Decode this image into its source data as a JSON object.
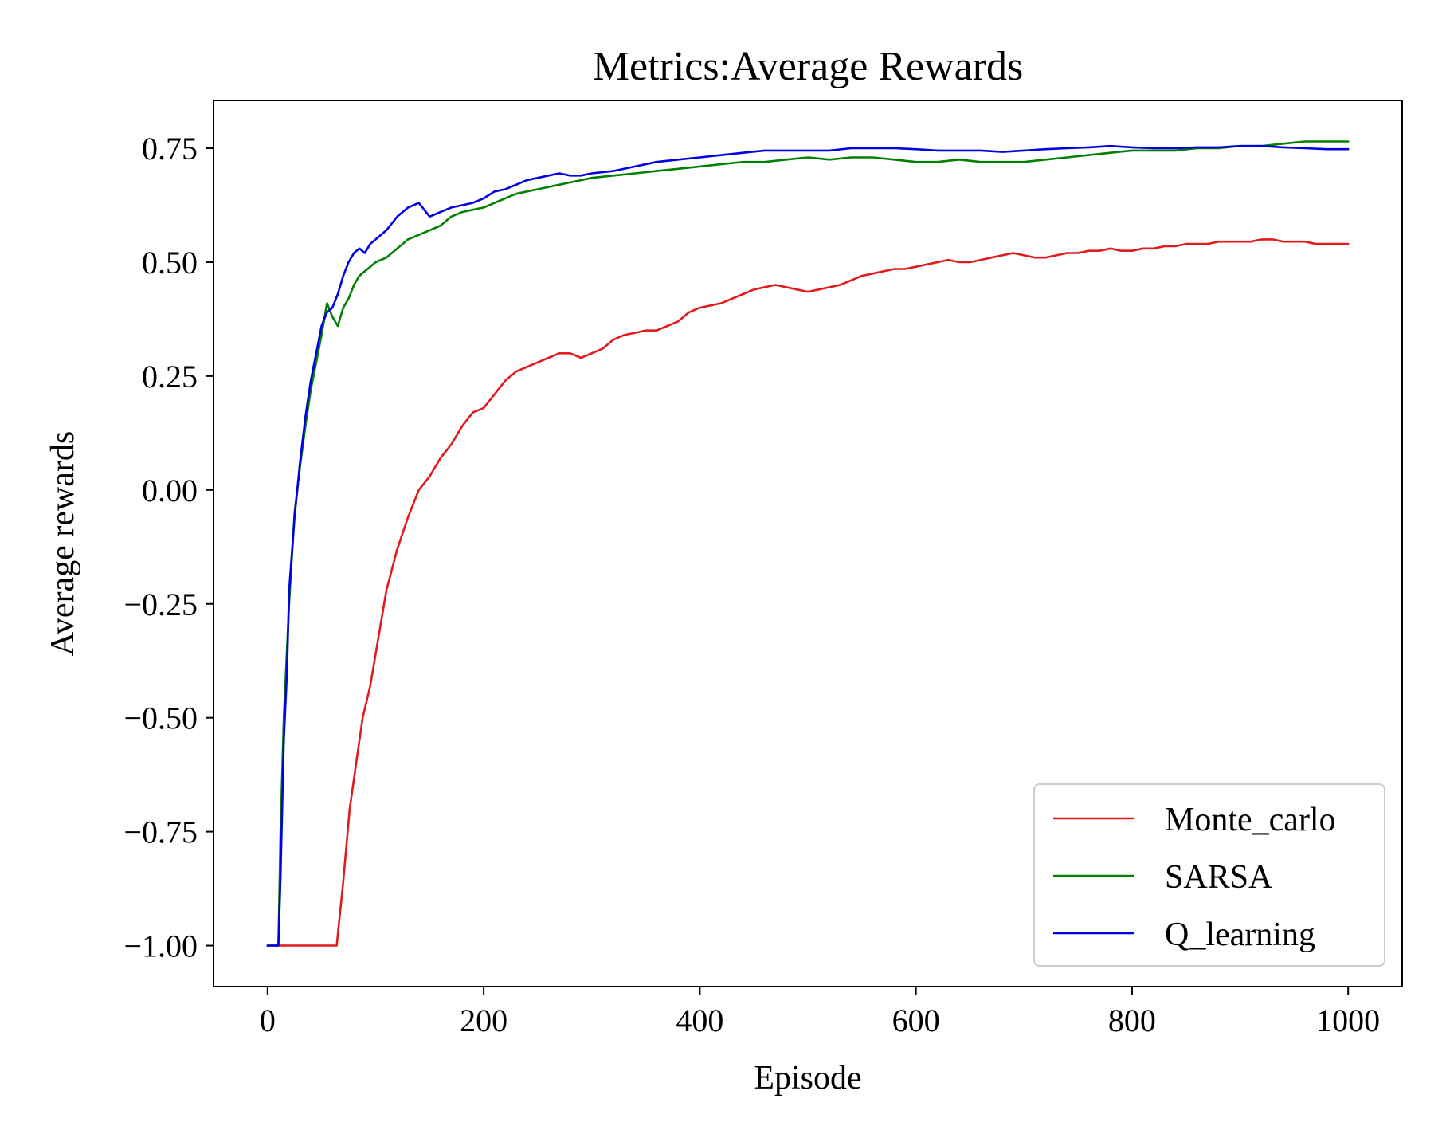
{
  "chart_data": {
    "type": "line",
    "title": "Metrics:Average Rewards",
    "xlabel": "Episode",
    "ylabel": "Average rewards",
    "xlim": [
      -50,
      1050
    ],
    "ylim": [
      -1.09,
      0.855
    ],
    "xticks": [
      0,
      200,
      400,
      600,
      800,
      1000
    ],
    "xtick_labels": [
      "0",
      "200",
      "400",
      "600",
      "800",
      "1000"
    ],
    "yticks": [
      -1.0,
      -0.75,
      -0.5,
      -0.25,
      0.0,
      0.25,
      0.5,
      0.75
    ],
    "ytick_labels": [
      "−1.00",
      "−0.75",
      "−0.50",
      "−0.25",
      "0.00",
      "0.25",
      "0.50",
      "0.75"
    ],
    "grid": false,
    "legend_position": "lower right",
    "series": [
      {
        "name": "Monte_carlo",
        "color": "#e31a1c",
        "x": [
          0,
          20,
          40,
          60,
          64,
          70,
          76,
          82,
          88,
          95,
          100,
          110,
          120,
          130,
          140,
          150,
          160,
          170,
          180,
          190,
          200,
          210,
          220,
          230,
          240,
          250,
          260,
          270,
          280,
          290,
          300,
          310,
          320,
          330,
          340,
          350,
          360,
          370,
          380,
          390,
          400,
          410,
          420,
          430,
          440,
          450,
          460,
          470,
          480,
          490,
          500,
          510,
          520,
          530,
          540,
          550,
          560,
          570,
          580,
          590,
          600,
          610,
          620,
          630,
          640,
          650,
          660,
          670,
          680,
          690,
          700,
          710,
          720,
          730,
          740,
          750,
          760,
          770,
          780,
          790,
          800,
          810,
          820,
          830,
          840,
          850,
          860,
          870,
          880,
          890,
          900,
          910,
          920,
          930,
          940,
          950,
          960,
          970,
          980,
          990,
          1000
        ],
        "y": [
          -1.0,
          -1.0,
          -1.0,
          -1.0,
          -1.0,
          -0.86,
          -0.7,
          -0.6,
          -0.5,
          -0.43,
          -0.36,
          -0.22,
          -0.13,
          -0.06,
          0.0,
          0.03,
          0.07,
          0.1,
          0.14,
          0.17,
          0.18,
          0.21,
          0.24,
          0.26,
          0.27,
          0.28,
          0.29,
          0.3,
          0.3,
          0.29,
          0.3,
          0.31,
          0.33,
          0.34,
          0.345,
          0.35,
          0.35,
          0.36,
          0.37,
          0.39,
          0.4,
          0.405,
          0.41,
          0.42,
          0.43,
          0.44,
          0.445,
          0.45,
          0.445,
          0.44,
          0.435,
          0.44,
          0.445,
          0.45,
          0.46,
          0.47,
          0.475,
          0.48,
          0.485,
          0.485,
          0.49,
          0.495,
          0.5,
          0.505,
          0.5,
          0.5,
          0.505,
          0.51,
          0.515,
          0.52,
          0.515,
          0.51,
          0.51,
          0.515,
          0.52,
          0.52,
          0.525,
          0.525,
          0.53,
          0.525,
          0.525,
          0.53,
          0.53,
          0.535,
          0.535,
          0.54,
          0.54,
          0.54,
          0.545,
          0.545,
          0.545,
          0.545,
          0.55,
          0.55,
          0.545,
          0.545,
          0.545,
          0.54,
          0.54,
          0.54,
          0.54
        ]
      },
      {
        "name": "SARSA",
        "color": "#008000",
        "x": [
          0,
          5,
          10,
          12,
          15,
          18,
          20,
          25,
          30,
          35,
          40,
          45,
          50,
          55,
          60,
          65,
          70,
          75,
          80,
          85,
          90,
          95,
          100,
          110,
          120,
          130,
          140,
          150,
          160,
          170,
          180,
          190,
          200,
          210,
          220,
          230,
          240,
          250,
          260,
          270,
          280,
          290,
          300,
          320,
          340,
          360,
          380,
          400,
          420,
          440,
          460,
          480,
          500,
          520,
          540,
          560,
          580,
          600,
          620,
          640,
          660,
          680,
          700,
          720,
          740,
          760,
          780,
          800,
          820,
          840,
          860,
          880,
          900,
          920,
          940,
          960,
          980,
          1000
        ],
        "y": [
          -1.0,
          -1.0,
          -1.0,
          -0.75,
          -0.5,
          -0.35,
          -0.25,
          -0.05,
          0.05,
          0.14,
          0.22,
          0.28,
          0.34,
          0.41,
          0.38,
          0.36,
          0.4,
          0.42,
          0.45,
          0.47,
          0.48,
          0.49,
          0.5,
          0.51,
          0.53,
          0.55,
          0.56,
          0.57,
          0.58,
          0.6,
          0.61,
          0.615,
          0.62,
          0.63,
          0.64,
          0.65,
          0.655,
          0.66,
          0.665,
          0.67,
          0.675,
          0.68,
          0.685,
          0.69,
          0.695,
          0.7,
          0.705,
          0.71,
          0.715,
          0.72,
          0.72,
          0.725,
          0.73,
          0.725,
          0.73,
          0.73,
          0.725,
          0.72,
          0.72,
          0.725,
          0.72,
          0.72,
          0.72,
          0.725,
          0.73,
          0.735,
          0.74,
          0.745,
          0.745,
          0.745,
          0.75,
          0.75,
          0.755,
          0.755,
          0.76,
          0.765,
          0.765,
          0.765
        ]
      },
      {
        "name": "Q_learning",
        "color": "#0000e6",
        "x": [
          0,
          5,
          10,
          12,
          15,
          18,
          20,
          25,
          30,
          35,
          40,
          45,
          50,
          55,
          60,
          65,
          70,
          75,
          80,
          85,
          90,
          95,
          100,
          110,
          120,
          130,
          140,
          150,
          160,
          170,
          180,
          190,
          200,
          210,
          220,
          230,
          240,
          250,
          260,
          270,
          280,
          290,
          300,
          320,
          340,
          360,
          380,
          400,
          420,
          440,
          460,
          480,
          500,
          520,
          540,
          560,
          580,
          600,
          620,
          640,
          660,
          680,
          700,
          720,
          740,
          760,
          780,
          800,
          820,
          840,
          860,
          880,
          900,
          920,
          940,
          960,
          980,
          1000
        ],
        "y": [
          -1.0,
          -1.0,
          -1.0,
          -0.85,
          -0.55,
          -0.4,
          -0.22,
          -0.06,
          0.06,
          0.16,
          0.24,
          0.3,
          0.36,
          0.39,
          0.4,
          0.43,
          0.47,
          0.5,
          0.52,
          0.53,
          0.52,
          0.54,
          0.55,
          0.57,
          0.6,
          0.62,
          0.63,
          0.6,
          0.61,
          0.62,
          0.625,
          0.63,
          0.64,
          0.655,
          0.66,
          0.67,
          0.68,
          0.685,
          0.69,
          0.695,
          0.69,
          0.69,
          0.695,
          0.7,
          0.71,
          0.72,
          0.725,
          0.73,
          0.735,
          0.74,
          0.745,
          0.745,
          0.745,
          0.745,
          0.75,
          0.75,
          0.75,
          0.748,
          0.745,
          0.745,
          0.745,
          0.742,
          0.745,
          0.748,
          0.75,
          0.752,
          0.755,
          0.752,
          0.75,
          0.75,
          0.752,
          0.752,
          0.755,
          0.755,
          0.752,
          0.75,
          0.748,
          0.748
        ]
      }
    ]
  }
}
